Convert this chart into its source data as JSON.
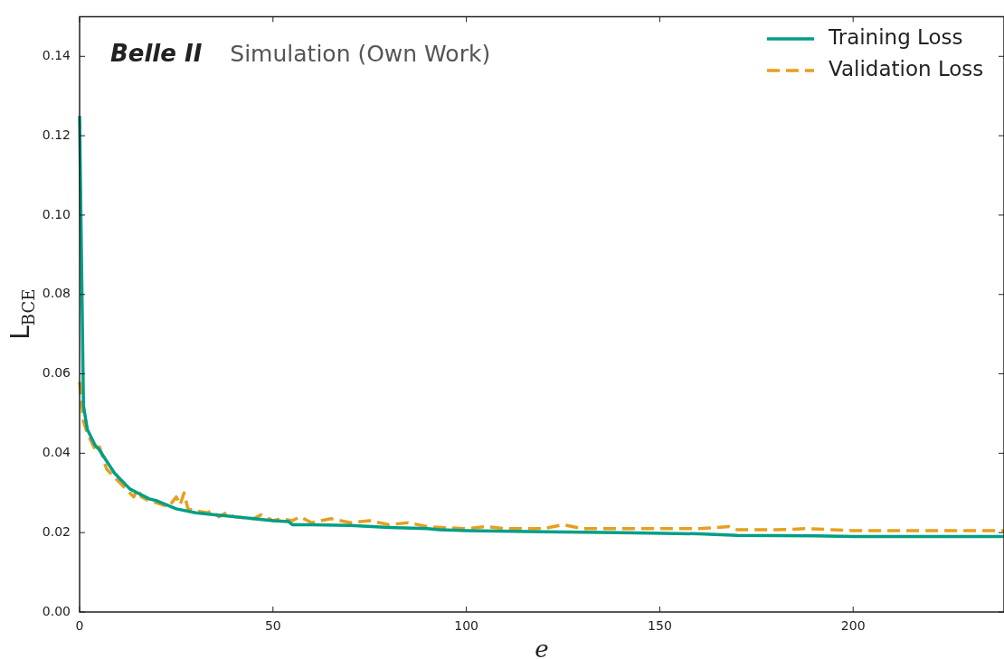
{
  "chart_data": {
    "type": "line",
    "title": "Belle II",
    "subtitle": "Simulation (Own Work)",
    "xlabel": "e",
    "ylabel": "L$_{BCE}$",
    "xlim": [
      0,
      239
    ],
    "xticks": [
      0,
      50,
      100,
      150,
      200
    ],
    "ylim": [
      0,
      0.15
    ],
    "yticks": [
      {
        "value": 0,
        "label": "0.00"
      },
      {
        "value": 0.02,
        "label": "0.02"
      },
      {
        "value": 0.04,
        "label": "0.04"
      },
      {
        "value": 0.06,
        "label": "0.06"
      },
      {
        "value": 0.08,
        "label": "0.08"
      },
      {
        "value": 0.1,
        "label": "0.10"
      },
      {
        "value": 0.12,
        "label": "0.12"
      },
      {
        "value": 0.14,
        "label": "0.14"
      }
    ],
    "grid": false,
    "legend": "top right",
    "marker": "none",
    "series": [
      {
        "name": "Training Loss",
        "color": "#009e87",
        "line_style": "solid",
        "x": [
          0,
          1,
          2,
          3,
          4,
          5,
          7,
          9,
          11,
          13,
          15,
          18,
          20,
          25,
          30,
          35,
          40,
          45,
          50,
          54,
          55,
          60,
          70,
          80,
          90,
          93,
          100,
          120,
          140,
          160,
          170,
          190,
          200,
          239
        ],
        "values": [
          0.125,
          0.052,
          0.046,
          0.044,
          0.042,
          0.041,
          0.038,
          0.035,
          0.033,
          0.031,
          0.03,
          0.0285,
          0.028,
          0.026,
          0.025,
          0.0245,
          0.024,
          0.0235,
          0.023,
          0.0228,
          0.022,
          0.022,
          0.0218,
          0.0213,
          0.021,
          0.0207,
          0.0205,
          0.0202,
          0.02,
          0.0197,
          0.0193,
          0.0192,
          0.019,
          0.019
        ]
      },
      {
        "name": "Validation Loss",
        "color": "#e69f1e",
        "line_style": "dashed",
        "x": [
          0,
          1,
          2,
          3,
          4,
          5,
          6,
          7,
          9,
          12,
          14,
          15,
          16,
          18,
          20,
          23,
          25,
          26,
          27,
          28,
          30,
          33,
          34,
          36,
          38,
          40,
          45,
          47,
          50,
          52,
          55,
          57,
          60,
          65,
          70,
          75,
          80,
          85,
          90,
          100,
          105,
          110,
          120,
          125,
          130,
          140,
          150,
          160,
          168,
          170,
          180,
          188,
          200,
          220,
          239
        ],
        "values": [
          0.058,
          0.048,
          0.045,
          0.043,
          0.041,
          0.042,
          0.039,
          0.036,
          0.034,
          0.031,
          0.029,
          0.031,
          0.029,
          0.028,
          0.0275,
          0.0265,
          0.029,
          0.027,
          0.03,
          0.026,
          0.0255,
          0.025,
          0.0255,
          0.024,
          0.025,
          0.024,
          0.0235,
          0.0245,
          0.023,
          0.0235,
          0.023,
          0.024,
          0.0225,
          0.0235,
          0.0225,
          0.023,
          0.022,
          0.0225,
          0.0215,
          0.021,
          0.0215,
          0.021,
          0.021,
          0.022,
          0.021,
          0.021,
          0.021,
          0.021,
          0.0215,
          0.0207,
          0.0207,
          0.021,
          0.0205,
          0.0205,
          0.0205
        ]
      }
    ]
  }
}
